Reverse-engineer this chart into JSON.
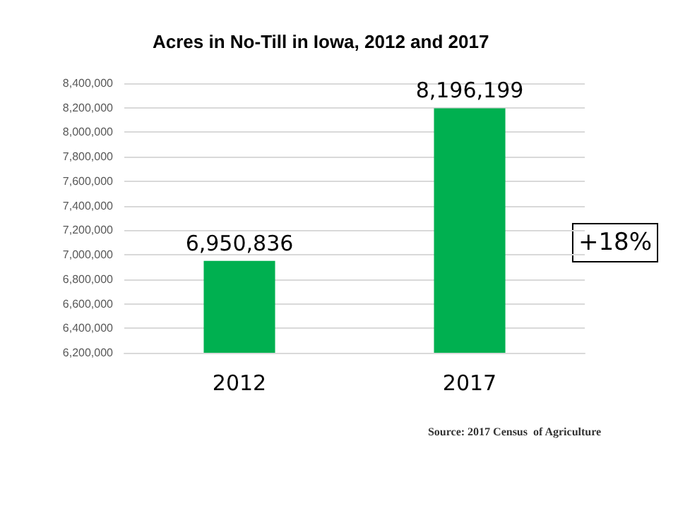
{
  "chart_data": {
    "type": "bar",
    "title": "Acres in No-Till in Iowa, 2012 and 2017",
    "categories": [
      "2012",
      "2017"
    ],
    "values": [
      6950836,
      8196199
    ],
    "color": "#00b050",
    "value_labels": [
      "6,950,836",
      "8,196,199"
    ],
    "ylim": [
      6200000,
      8400000
    ],
    "yticks": [
      {
        "value": 6200000,
        "label": "6,200,000"
      },
      {
        "value": 6400000,
        "label": "6,400,000"
      },
      {
        "value": 6600000,
        "label": "6,600,000"
      },
      {
        "value": 6800000,
        "label": "6,800,000"
      },
      {
        "value": 7000000,
        "label": "7,000,000"
      },
      {
        "value": 7200000,
        "label": "7,200,000"
      },
      {
        "value": 7400000,
        "label": "7,400,000"
      },
      {
        "value": 7600000,
        "label": "7,600,000"
      },
      {
        "value": 7800000,
        "label": "7,800,000"
      },
      {
        "value": 8000000,
        "label": "8,000,000"
      },
      {
        "value": 8200000,
        "label": "8,200,000"
      },
      {
        "value": 8400000,
        "label": "8,400,000"
      }
    ],
    "grid": "y",
    "annotations": [
      "+18%",
      "Source: 2017 Census  of Agriculture"
    ]
  }
}
